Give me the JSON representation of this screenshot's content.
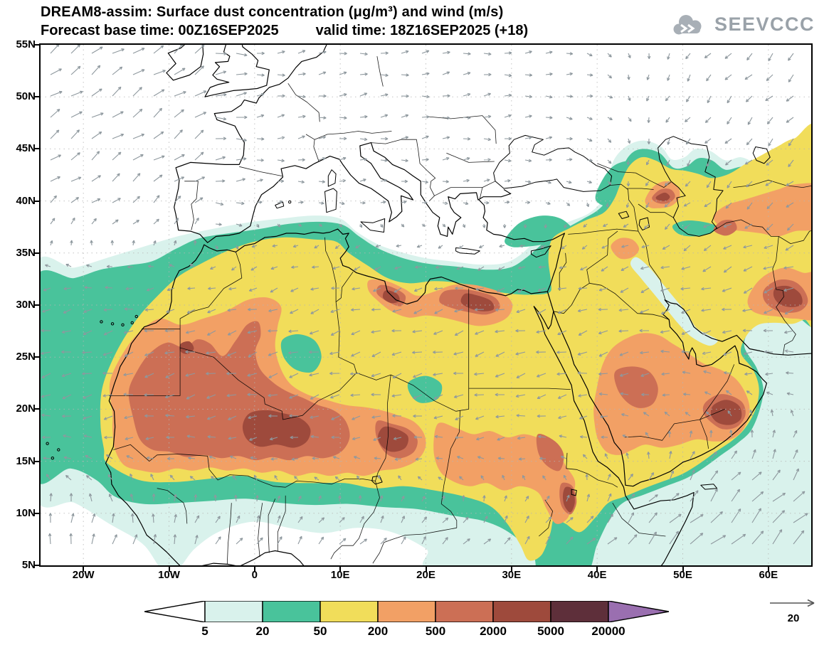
{
  "header": {
    "title_line1": "DREAM8-assim: Surface dust concentration (μg/m³) and wind (m/s)",
    "title_line2a": "Forecast base time: 00Z16SEP2025",
    "title_line2b": "valid time: 18Z16SEP2025 (+18)",
    "logo_text": "SEEVCCC"
  },
  "map": {
    "lat_labels": [
      "55N",
      "50N",
      "45N",
      "40N",
      "35N",
      "30N",
      "25N",
      "20N",
      "15N",
      "10N",
      "5N"
    ],
    "lon_labels": [
      "20W",
      "10W",
      "0",
      "10E",
      "20E",
      "30E",
      "40E",
      "50E",
      "60E"
    ],
    "lat_extent": [
      5,
      55
    ],
    "lon_extent": [
      -25,
      65
    ]
  },
  "colorbar": {
    "tick_labels": [
      "5",
      "20",
      "50",
      "200",
      "500",
      "2000",
      "5000",
      "20000"
    ],
    "colors": {
      "below": "#ffffff",
      "levels": [
        "#d9f2ec",
        "#49c39b",
        "#f1dd5a",
        "#f2a065",
        "#cc6f55",
        "#9e4a3c",
        "#5e2f3a"
      ],
      "above": "#9a6fb0"
    },
    "outline": "#000000"
  },
  "wind_legend": {
    "label": "20"
  },
  "style_colors": {
    "coastline": "#000000",
    "wind_arrows": "#8e989e",
    "gridlines": "#b5b5b5",
    "logo_gray": "#a8afb6"
  },
  "chart_data": {
    "type": "heatmap",
    "title": "DREAM8-assim: Surface dust concentration (μg/m³) and wind (m/s)",
    "model": "DREAM8-assim",
    "field": "Surface dust concentration",
    "field_units": "μg/m³",
    "overlay": "wind (m/s)",
    "base_time": "00Z16SEP2025",
    "valid_time": "18Z16SEP2025",
    "lead": "+18",
    "contour_levels": [
      5,
      20,
      50,
      200,
      500,
      2000,
      5000,
      20000
    ],
    "wind_reference_ms": 20,
    "lat_ticks": [
      "55N",
      "50N",
      "45N",
      "40N",
      "35N",
      "30N",
      "25N",
      "20N",
      "15N",
      "10N",
      "5N"
    ],
    "lon_ticks": [
      "20W",
      "10W",
      "0",
      "10E",
      "20E",
      "30E",
      "40E",
      "50E",
      "60E"
    ]
  }
}
